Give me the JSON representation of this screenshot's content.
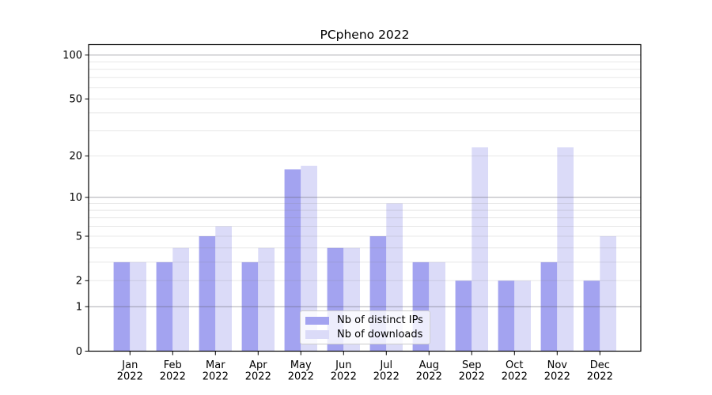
{
  "title": "PCpheno 2022",
  "chart_data": {
    "type": "bar",
    "title": "PCpheno 2022",
    "categories": [
      "Jan 2022",
      "Feb 2022",
      "Mar 2022",
      "Apr 2022",
      "May 2022",
      "Jun 2022",
      "Jul 2022",
      "Aug 2022",
      "Sep 2022",
      "Oct 2022",
      "Nov 2022",
      "Dec 2022"
    ],
    "month_labels": [
      "Jan",
      "Feb",
      "Mar",
      "Apr",
      "May",
      "Jun",
      "Jul",
      "Aug",
      "Sep",
      "Oct",
      "Nov",
      "Dec"
    ],
    "year_label": "2022",
    "series": [
      {
        "name": "Nb of distinct IPs",
        "color": "#a3a3f0",
        "values": [
          3,
          3,
          5,
          3,
          16,
          4,
          5,
          3,
          2,
          2,
          3,
          2
        ]
      },
      {
        "name": "Nb of downloads",
        "color": "#dbdbf8",
        "values": [
          3,
          4,
          6,
          4,
          17,
          4,
          9,
          3,
          23,
          2,
          23,
          5
        ]
      }
    ],
    "yscale": "log1p",
    "ylim": [
      0,
      100
    ],
    "yticks": [
      0,
      1,
      2,
      5,
      10,
      20,
      50,
      100
    ],
    "major_gridlines": [
      1,
      10,
      100
    ],
    "minor_gridlines": [
      2,
      3,
      4,
      5,
      6,
      7,
      8,
      9,
      20,
      30,
      40,
      50,
      60,
      70,
      80,
      90
    ],
    "grid": true,
    "legend_position": "lower center",
    "colors": {
      "axis": "#000000",
      "tick_label": "#000000",
      "major_grid_rgba": "rgba(90,90,100,0.5)",
      "minor_grid_rgba": "rgba(127,127,127,0.18)"
    }
  }
}
